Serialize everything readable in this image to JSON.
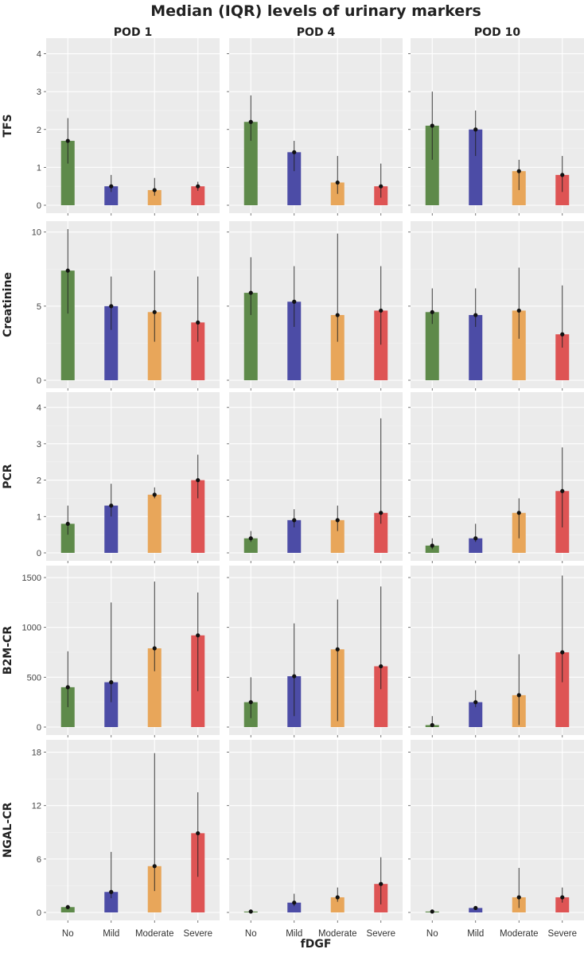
{
  "chart_data": {
    "type": "bar",
    "title": "Median (IQR) levels of urinary markers",
    "xlabel": "fDGF",
    "categories": [
      "No",
      "Mild",
      "Moderate",
      "Severe"
    ],
    "colors": [
      "#5e8a4a",
      "#4c4ca6",
      "#e8a65a",
      "#de5454"
    ],
    "columns": [
      "POD 1",
      "POD 4",
      "POD 10"
    ],
    "rows": [
      {
        "name": "TFS",
        "ylim": [
          0,
          4.2
        ],
        "yticks": [
          0,
          1,
          2,
          3,
          4
        ],
        "panels": [
          {
            "median": [
              1.7,
              0.5,
              0.4,
              0.5
            ],
            "q1": [
              1.1,
              0.35,
              0.25,
              0.38
            ],
            "q3": [
              2.3,
              0.8,
              0.72,
              0.62
            ]
          },
          {
            "median": [
              2.2,
              1.4,
              0.6,
              0.5
            ],
            "q1": [
              1.7,
              0.9,
              0.3,
              0.2
            ],
            "q3": [
              2.9,
              1.7,
              1.3,
              1.1
            ]
          },
          {
            "median": [
              2.1,
              2.0,
              0.9,
              0.8
            ],
            "q1": [
              1.2,
              1.3,
              0.4,
              0.35
            ],
            "q3": [
              3.0,
              2.5,
              1.2,
              1.3
            ]
          }
        ]
      },
      {
        "name": "Creatinine",
        "ylim": [
          0,
          10.2
        ],
        "yticks": [
          0,
          5,
          10
        ],
        "panels": [
          {
            "median": [
              7.4,
              5.0,
              4.6,
              3.9
            ],
            "q1": [
              4.5,
              3.4,
              2.6,
              2.6
            ],
            "q3": [
              10.2,
              7.0,
              7.4,
              7.0
            ]
          },
          {
            "median": [
              5.9,
              5.3,
              4.4,
              4.7
            ],
            "q1": [
              4.4,
              3.6,
              2.6,
              2.4
            ],
            "q3": [
              8.3,
              7.7,
              9.9,
              7.7
            ]
          },
          {
            "median": [
              4.6,
              4.4,
              4.7,
              3.1
            ],
            "q1": [
              3.8,
              3.6,
              2.8,
              2.2
            ],
            "q3": [
              6.2,
              6.2,
              7.6,
              6.4
            ]
          }
        ]
      },
      {
        "name": "PCR",
        "ylim": [
          0,
          4.2
        ],
        "yticks": [
          0,
          1,
          2,
          3,
          4
        ],
        "panels": [
          {
            "median": [
              0.8,
              1.3,
              1.6,
              2.0
            ],
            "q1": [
              0.5,
              1.0,
              1.5,
              1.5
            ],
            "q3": [
              1.3,
              1.9,
              1.8,
              2.7
            ]
          },
          {
            "median": [
              0.4,
              0.9,
              0.9,
              1.1
            ],
            "q1": [
              0.3,
              0.7,
              0.6,
              0.8
            ],
            "q3": [
              0.6,
              1.2,
              1.3,
              3.7
            ]
          },
          {
            "median": [
              0.2,
              0.4,
              1.1,
              1.7
            ],
            "q1": [
              0.1,
              0.3,
              0.4,
              0.7
            ],
            "q3": [
              0.4,
              0.8,
              1.5,
              2.9
            ]
          }
        ]
      },
      {
        "name": "B2M-CR",
        "ylim": [
          0,
          1540
        ],
        "yticks": [
          0,
          500,
          1000,
          1500
        ],
        "panels": [
          {
            "median": [
              400,
              450,
              790,
              920
            ],
            "q1": [
              200,
              250,
              560,
              360
            ],
            "q3": [
              760,
              1250,
              1460,
              1350
            ]
          },
          {
            "median": [
              250,
              510,
              780,
              610
            ],
            "q1": [
              90,
              110,
              60,
              380
            ],
            "q3": [
              500,
              1040,
              1280,
              1410
            ]
          },
          {
            "median": [
              20,
              250,
              320,
              750
            ],
            "q1": [
              5,
              200,
              20,
              450
            ],
            "q3": [
              110,
              370,
              730,
              1520
            ]
          }
        ]
      },
      {
        "name": "NGAL-CR",
        "ylim": [
          0,
          18.5
        ],
        "yticks": [
          0,
          6,
          12,
          18
        ],
        "panels": [
          {
            "median": [
              0.6,
              2.3,
              5.2,
              8.9
            ],
            "q1": [
              0.4,
              1.6,
              2.4,
              4.0
            ],
            "q3": [
              0.8,
              6.8,
              17.9,
              13.5
            ]
          },
          {
            "median": [
              0.1,
              1.1,
              1.7,
              3.2
            ],
            "q1": [
              0.05,
              0.7,
              1.2,
              0.9
            ],
            "q3": [
              0.3,
              2.1,
              2.8,
              6.2
            ]
          },
          {
            "median": [
              0.1,
              0.5,
              1.7,
              1.7
            ],
            "q1": [
              0.05,
              0.35,
              0.5,
              1.1
            ],
            "q3": [
              0.3,
              0.7,
              5.0,
              2.8
            ]
          }
        ]
      }
    ]
  }
}
